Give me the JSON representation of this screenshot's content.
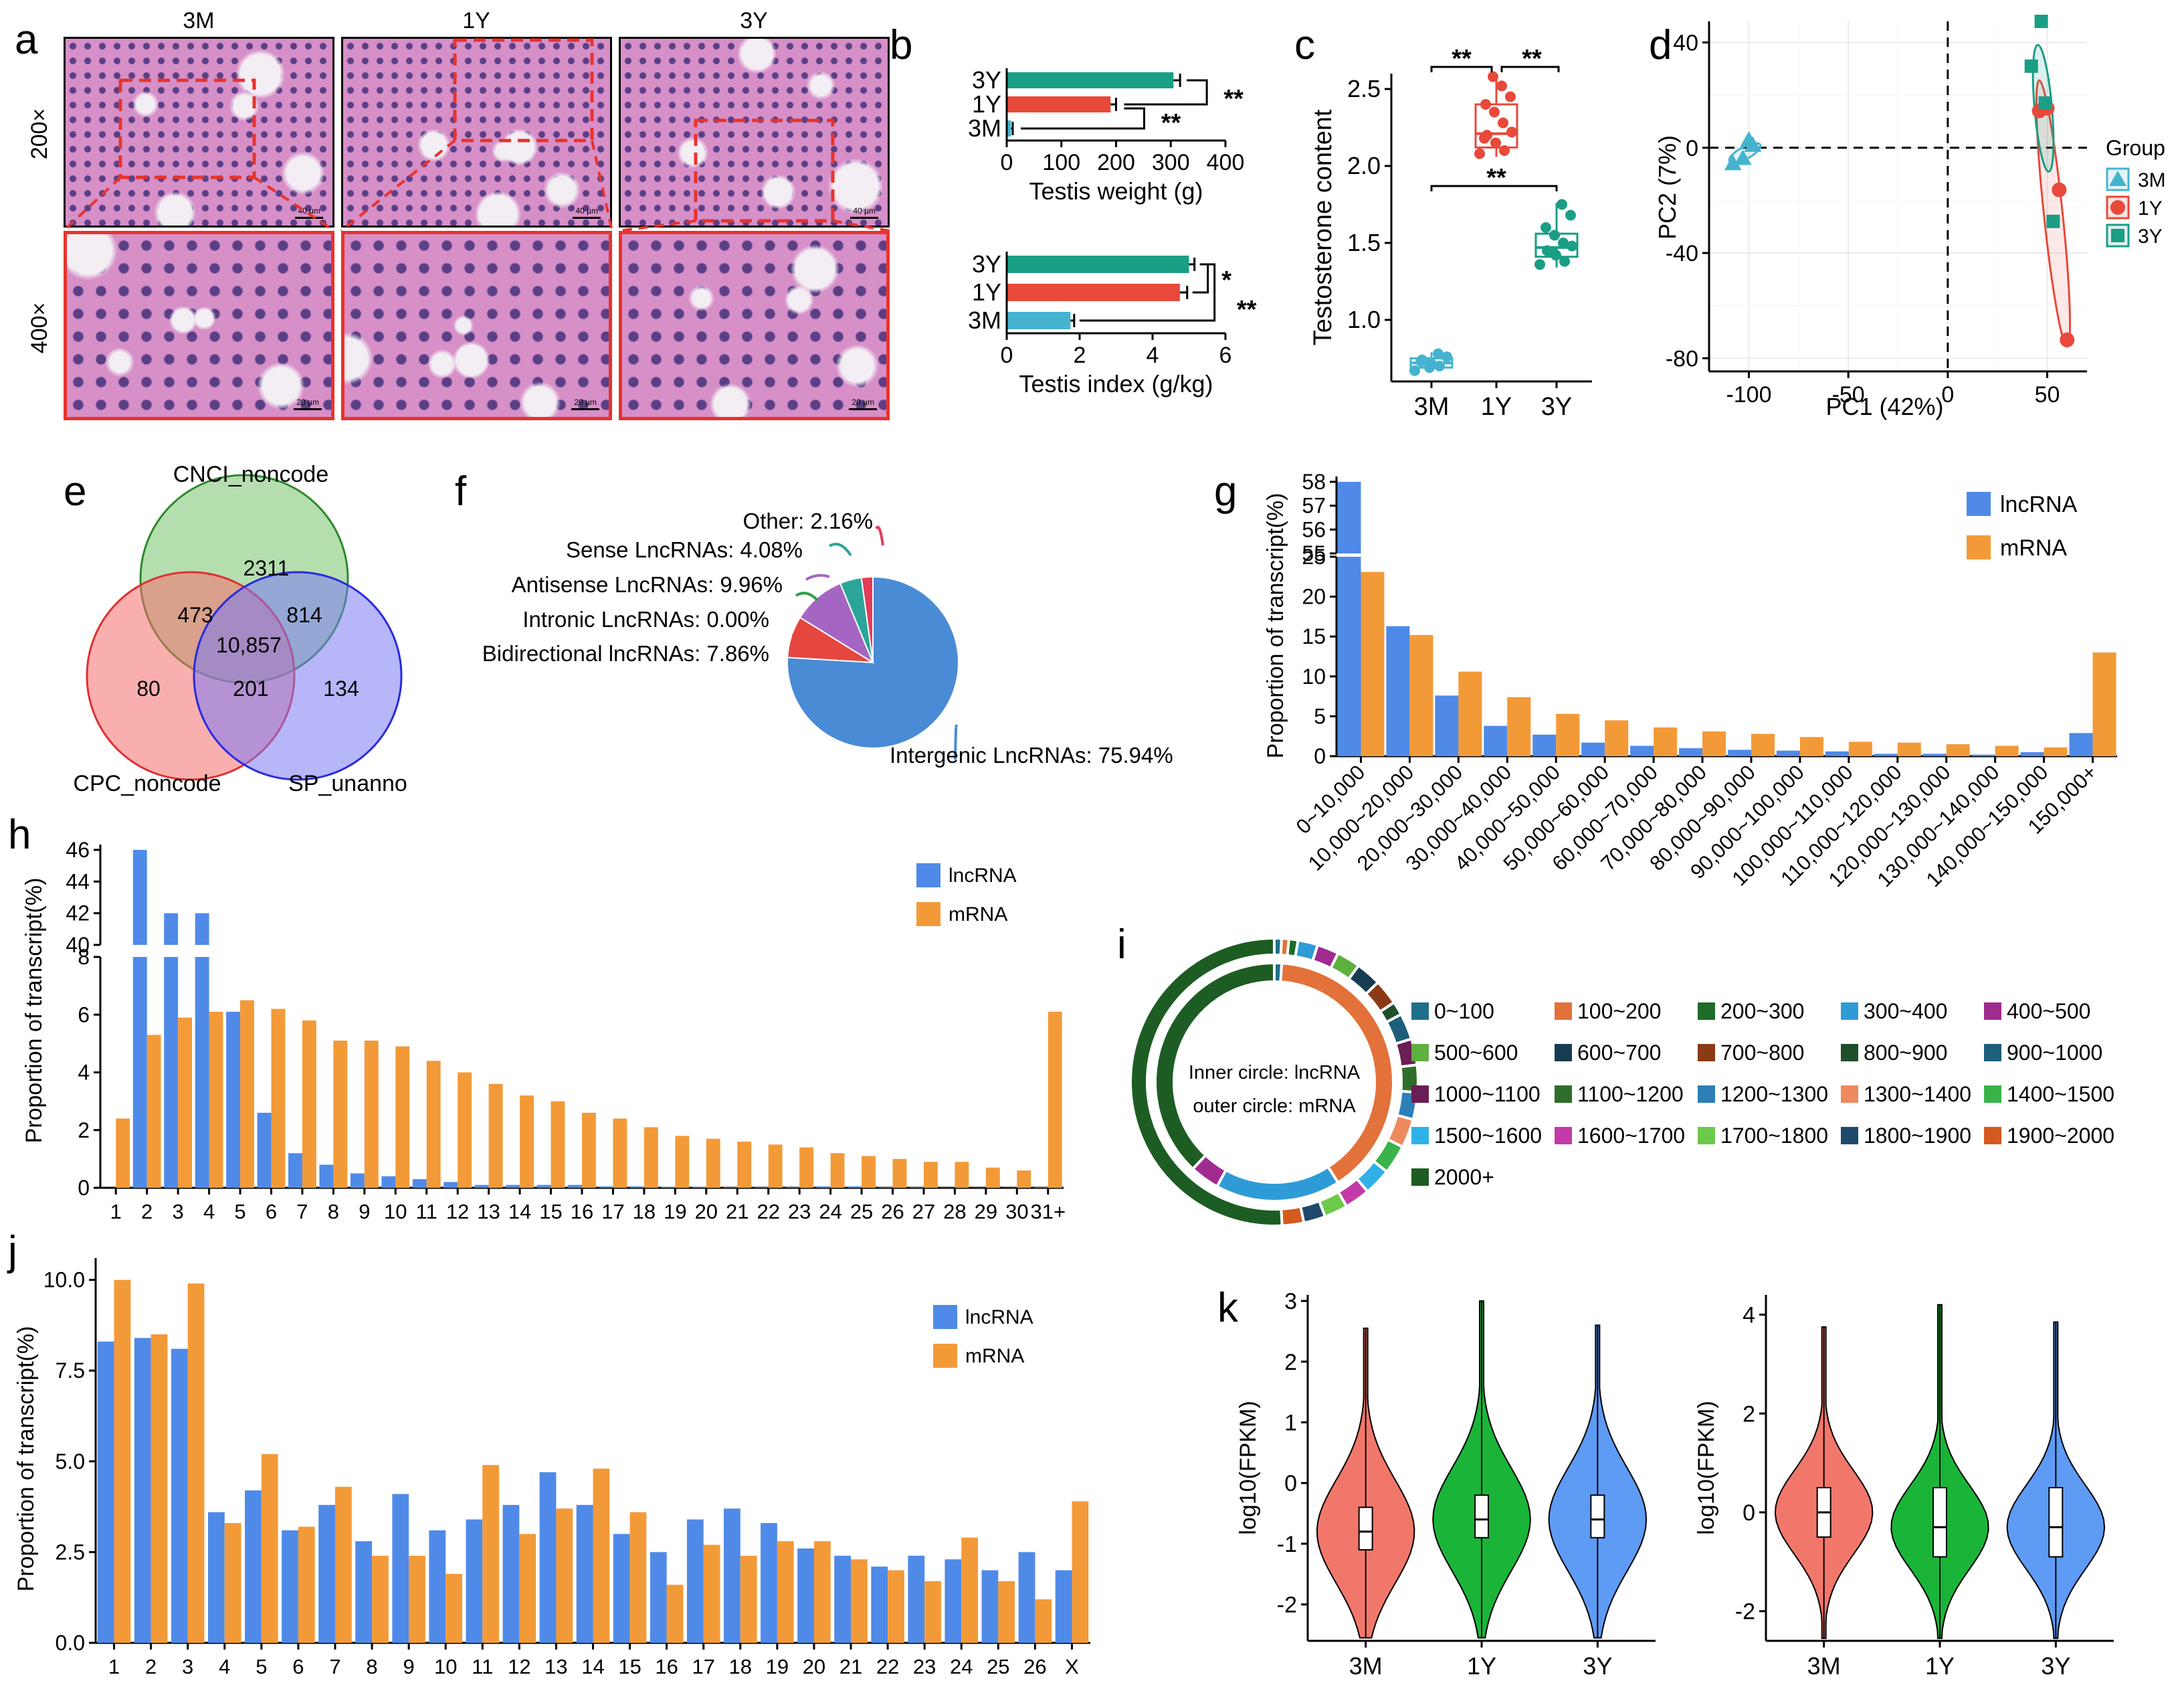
{
  "panels": {
    "a": {
      "letter": "a",
      "columns": [
        "3M",
        "1Y",
        "3Y"
      ],
      "rows": [
        "200×",
        "400×"
      ],
      "scale_top": "40 µm",
      "scale_bottom": "20 µm",
      "colors": {
        "tissue": "#d78fc8",
        "nuclei": "#5b3f86",
        "lumen": "#f3eef4",
        "box": "#e8332b"
      }
    },
    "b": {
      "letter": "b"
    },
    "c": {
      "letter": "c"
    },
    "d": {
      "letter": "d"
    },
    "e": {
      "letter": "e",
      "sets": [
        "CNCI_noncode",
        "CPC_noncode",
        "SP_unanno"
      ],
      "regions": {
        "cnci_only": "2311",
        "cnci_cpc": "473",
        "cnci_sp": "814",
        "all": "10,857",
        "cpc_only": "80",
        "cpc_sp": "201",
        "sp_only": "134"
      }
    },
    "f": {
      "letter": "f"
    },
    "g": {
      "letter": "g"
    },
    "h": {
      "letter": "h"
    },
    "i": {
      "letter": "i",
      "inner_label": "Inner circle: lncRNA",
      "outer_label": "outer circle: mRNA"
    },
    "j": {
      "letter": "j"
    },
    "k": {
      "letter": "k"
    }
  },
  "colors": {
    "lncRNA": "#4f8ae8",
    "mRNA": "#f39a38",
    "3M": "#45b3cf",
    "1Y": "#e8493a",
    "3Y": "#1a9e85",
    "violin_3M": "#f2776b",
    "violin_1Y": "#1ab538",
    "violin_3Y": "#5e9bf5"
  },
  "chart_data": [
    {
      "id": "b1",
      "type": "bar",
      "orientation": "horizontal",
      "categories": [
        "3Y",
        "1Y",
        "3M"
      ],
      "values": [
        305,
        190,
        8
      ],
      "errors": [
        12,
        10,
        3
      ],
      "xlabel": "Testis weight (g)",
      "xlim": [
        0,
        400
      ],
      "xticks": [
        "0",
        "100",
        "200",
        "300",
        "400"
      ],
      "significance": [
        "**",
        "**"
      ]
    },
    {
      "id": "b2",
      "type": "bar",
      "orientation": "horizontal",
      "categories": [
        "3Y",
        "1Y",
        "3M"
      ],
      "values": [
        5.0,
        4.75,
        1.75
      ],
      "errors": [
        0.15,
        0.2,
        0.1
      ],
      "xlabel": "Testis index (g/kg)",
      "xlim": [
        0,
        6
      ],
      "xticks": [
        "0",
        "2",
        "4",
        "6"
      ],
      "significance": [
        "*",
        "**"
      ]
    },
    {
      "id": "c",
      "type": "box",
      "categories": [
        "3M",
        "1Y",
        "3Y"
      ],
      "boxes": [
        {
          "min": 0.66,
          "q1": 0.69,
          "median": 0.72,
          "q3": 0.75,
          "max": 0.79
        },
        {
          "min": 2.06,
          "q1": 2.12,
          "median": 2.21,
          "q3": 2.4,
          "max": 2.6
        },
        {
          "min": 1.34,
          "q1": 1.41,
          "median": 1.47,
          "q3": 1.56,
          "max": 1.76
        }
      ],
      "points": [
        [
          0.67,
          0.7,
          0.72,
          0.74,
          0.76,
          0.78,
          0.69,
          0.73
        ],
        [
          2.08,
          2.1,
          2.15,
          2.2,
          2.22,
          2.28,
          2.35,
          2.4,
          2.45,
          2.52,
          2.58,
          2.18
        ],
        [
          1.36,
          1.38,
          1.42,
          1.45,
          1.48,
          1.5,
          1.55,
          1.6,
          1.68,
          1.75,
          1.44
        ]
      ],
      "ylabel": "Testosterone content",
      "ylim": [
        0.6,
        2.6
      ],
      "yticks": [
        "1.0",
        "1.5",
        "2.0",
        "2.5"
      ],
      "significance": [
        "**",
        "**",
        "**"
      ]
    },
    {
      "id": "d",
      "type": "scatter",
      "xlabel": "PC1 (42%)",
      "ylabel": "PC2 (7%)",
      "xlim": [
        -120,
        70
      ],
      "ylim": [
        -85,
        48
      ],
      "xticks": [
        "-100",
        "-50",
        "0",
        "50"
      ],
      "yticks": [
        "40",
        "0",
        "-40",
        "-80"
      ],
      "legend_title": "Group",
      "series": [
        {
          "name": "3M",
          "marker": "triangle",
          "x": [
            -108,
            -103,
            -100,
            -98
          ],
          "y": [
            -6,
            -4,
            3,
            1
          ]
        },
        {
          "name": "1Y",
          "marker": "circle",
          "x": [
            46,
            50,
            56,
            60
          ],
          "y": [
            14,
            15,
            -16,
            -73
          ]
        },
        {
          "name": "3Y",
          "marker": "square",
          "x": [
            42,
            47,
            49,
            53
          ],
          "y": [
            31,
            48,
            17,
            -28
          ]
        }
      ]
    },
    {
      "id": "f",
      "type": "pie",
      "labels": [
        "Intergenic LncRNAs: 75.94%",
        "Bidirectional lncRNAs: 7.86%",
        "Intronic LncRNAs: 0.00%",
        "Antisense LncRNAs: 9.96%",
        "Sense LncRNAs: 4.08%",
        "Other: 2.16%"
      ],
      "values": [
        75.94,
        7.86,
        0.0,
        9.96,
        4.08,
        2.16
      ],
      "colors": [
        "#4a8bd6",
        "#e5473e",
        "#2ea049",
        "#a566c3",
        "#2aa598",
        "#e33c5a"
      ]
    },
    {
      "id": "g",
      "type": "bar",
      "ylabel": "Proportion of  transcript(%)",
      "categories": [
        "0~10,000",
        "10,000~20,000",
        "20,000~30,000",
        "30,000~40,000",
        "40,000~50,000",
        "50,000~60,000",
        "60,000~70,000",
        "70,000~80,000",
        "80,000~90,000",
        "90,000~100,000",
        "100,000~110,000",
        "110,000~120,000",
        "120,000~130,000",
        "130,000~140,000",
        "140,000~150,000",
        "150,000+"
      ],
      "series": [
        {
          "name": "lncRNA",
          "values": [
            58,
            16.3,
            7.6,
            3.8,
            2.7,
            1.7,
            1.3,
            1.0,
            0.8,
            0.7,
            0.6,
            0.3,
            0.3,
            0.2,
            0.5,
            2.9
          ]
        },
        {
          "name": "mRNA",
          "values": [
            23.1,
            15.2,
            10.6,
            7.4,
            5.3,
            4.5,
            3.6,
            3.1,
            2.8,
            2.4,
            1.8,
            1.7,
            1.5,
            1.3,
            1.1,
            13.0
          ]
        }
      ],
      "yticks_lower": [
        "0",
        "5",
        "10",
        "15",
        "20",
        "25"
      ],
      "yticks_upper": [
        "55",
        "56",
        "57",
        "58"
      ]
    },
    {
      "id": "h",
      "type": "bar",
      "ylabel": "Proportion of  transcript(%)",
      "categories": [
        "1",
        "2",
        "3",
        "4",
        "5",
        "6",
        "7",
        "8",
        "9",
        "10",
        "11",
        "12",
        "13",
        "14",
        "15",
        "16",
        "17",
        "18",
        "19",
        "20",
        "21",
        "22",
        "23",
        "24",
        "25",
        "26",
        "27",
        "28",
        "29",
        "30",
        "31+"
      ],
      "series": [
        {
          "name": "lncRNA",
          "values": [
            0,
            46,
            42,
            42,
            6.1,
            2.6,
            1.2,
            0.8,
            0.5,
            0.4,
            0.3,
            0.2,
            0.1,
            0.1,
            0.1,
            0.1,
            0.05,
            0.05,
            0.03,
            0.03,
            0.02,
            0.02,
            0.02,
            0.05,
            0.05,
            0.02,
            0.02,
            0.01,
            0.01,
            0.01,
            0.02
          ]
        },
        {
          "name": "mRNA",
          "values": [
            2.4,
            5.3,
            5.9,
            6.1,
            6.5,
            6.2,
            5.8,
            5.1,
            5.1,
            4.9,
            4.4,
            4.0,
            3.6,
            3.2,
            3.0,
            2.6,
            2.4,
            2.1,
            1.8,
            1.7,
            1.6,
            1.5,
            1.4,
            1.2,
            1.1,
            1.0,
            0.9,
            0.9,
            0.7,
            0.6,
            6.1
          ]
        }
      ],
      "yticks_lower": [
        "0",
        "2",
        "4",
        "6",
        "8"
      ],
      "yticks_upper": [
        "40",
        "42",
        "44",
        "46"
      ]
    },
    {
      "id": "i",
      "type": "donut",
      "legend": [
        "0~100",
        "100~200",
        "200~300",
        "300~400",
        "400~500",
        "500~600",
        "600~700",
        "700~800",
        "800~900",
        "900~1000",
        "1000~1100",
        "1100~1200",
        "1200~1300",
        "1300~1400",
        "1400~1500",
        "1500~1600",
        "1600~1700",
        "1700~1800",
        "1800~1900",
        "1900~2000",
        "2000+"
      ],
      "colors": [
        "#1f6f8b",
        "#e3713a",
        "#1e6b2a",
        "#2f9bd6",
        "#a02b8f",
        "#5eb03f",
        "#173c52",
        "#8b3a16",
        "#1f4f2a",
        "#1d5f7a",
        "#6b1d55",
        "#2f6e2a",
        "#2d7fb8",
        "#ee8a5e",
        "#39b34a",
        "#2fb1e8",
        "#c43aa8",
        "#6dc94b",
        "#1e4a6b",
        "#d45a1e",
        "#1d5d23"
      ],
      "inner_values": [
        1,
        40,
        0,
        17,
        4,
        0,
        0,
        0,
        0,
        0,
        0,
        0,
        0,
        0,
        0,
        0,
        0,
        0,
        0,
        0,
        38
      ],
      "outer_values": [
        0.8,
        0.8,
        1.0,
        2.2,
        2.4,
        2.6,
        2.8,
        2.8,
        1.5,
        2.9,
        2.9,
        3.0,
        3.0,
        3.2,
        3.2,
        3.0,
        2.8,
        2.6,
        2.4,
        2.4,
        50.0
      ]
    },
    {
      "id": "j",
      "type": "bar",
      "ylabel": "Proportion of  transcript(%)",
      "categories": [
        "1",
        "2",
        "3",
        "4",
        "5",
        "6",
        "7",
        "8",
        "9",
        "10",
        "11",
        "12",
        "13",
        "14",
        "15",
        "16",
        "17",
        "18",
        "19",
        "20",
        "21",
        "22",
        "23",
        "24",
        "25",
        "26",
        "X"
      ],
      "series": [
        {
          "name": "lncRNA",
          "values": [
            8.3,
            8.4,
            8.1,
            3.6,
            4.2,
            3.1,
            3.8,
            2.8,
            4.1,
            3.1,
            3.4,
            3.8,
            4.7,
            3.8,
            3.0,
            2.5,
            3.4,
            3.7,
            3.3,
            2.6,
            2.4,
            2.1,
            2.4,
            2.3,
            2.0,
            2.5,
            2.0
          ]
        },
        {
          "name": "mRNA",
          "values": [
            10.0,
            8.5,
            9.9,
            3.3,
            5.2,
            3.2,
            4.3,
            2.4,
            2.4,
            1.9,
            4.9,
            3.0,
            3.7,
            4.8,
            3.6,
            1.6,
            2.7,
            2.4,
            2.8,
            2.8,
            2.3,
            2.0,
            1.7,
            2.9,
            1.7,
            1.2,
            3.9
          ]
        }
      ],
      "ylim": [
        0,
        10.6
      ],
      "yticks": [
        "0.0",
        "2.5",
        "5.0",
        "7.5",
        "10.0"
      ]
    },
    {
      "id": "k1",
      "type": "violin",
      "categories": [
        "3M",
        "1Y",
        "3Y"
      ],
      "ylabel": "log10(FPKM)",
      "ylim": [
        -2.6,
        3.1
      ],
      "yticks": [
        "3",
        "2",
        "1",
        "0",
        "-1",
        "-2"
      ],
      "medians": [
        -0.8,
        -0.6,
        -0.6
      ],
      "q1": [
        -1.1,
        -0.9,
        -0.9
      ],
      "q3": [
        -0.4,
        -0.2,
        -0.2
      ],
      "tops": [
        2.55,
        3.0,
        2.6
      ],
      "bottoms": [
        -2.55,
        -2.55,
        -2.55
      ]
    },
    {
      "id": "k2",
      "type": "violin",
      "categories": [
        "3M",
        "1Y",
        "3Y"
      ],
      "ylabel": "log10(FPKM)",
      "ylim": [
        -2.6,
        4.4
      ],
      "yticks": [
        "4",
        "2",
        "0",
        "-2"
      ],
      "medians": [
        0.0,
        -0.3,
        -0.3
      ],
      "q1": [
        -0.5,
        -0.9,
        -0.9
      ],
      "q3": [
        0.5,
        0.5,
        0.5
      ],
      "tops": [
        3.75,
        4.2,
        3.85
      ],
      "bottoms": [
        -2.55,
        -2.55,
        -2.55
      ]
    }
  ]
}
